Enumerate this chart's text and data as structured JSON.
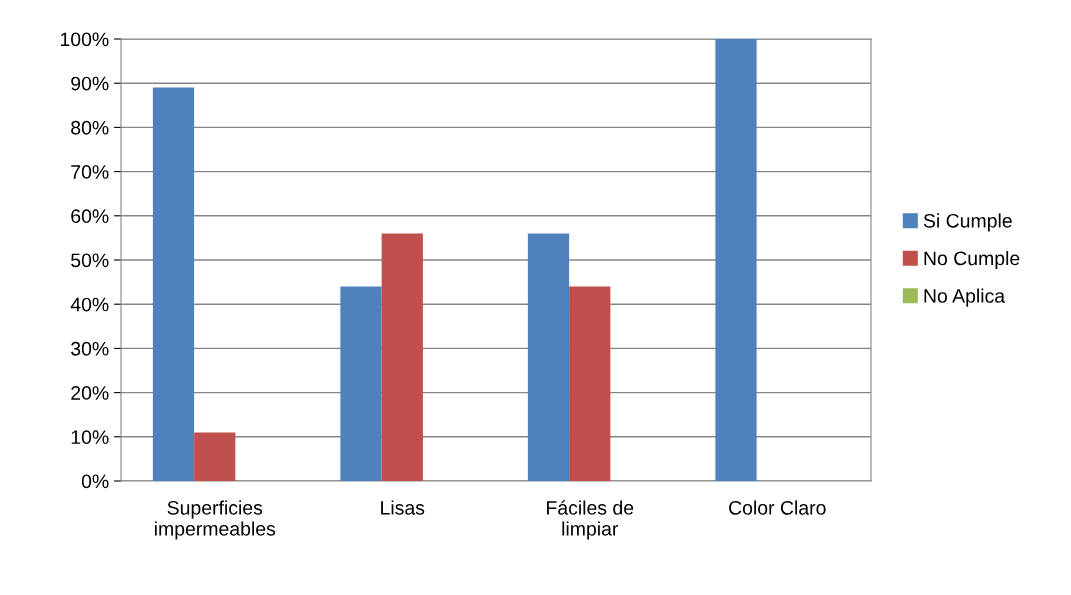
{
  "chart_data": {
    "type": "bar",
    "categories": [
      "Superficies\nimpermeables",
      "Lisas",
      "Fáciles de\nlimpiar",
      "Color Claro"
    ],
    "series": [
      {
        "name": "Si Cumple",
        "color": "#4f81bd",
        "values": [
          89,
          44,
          56,
          100
        ]
      },
      {
        "name": "No Cumple",
        "color": "#c0504d",
        "values": [
          11,
          56,
          44,
          0
        ]
      },
      {
        "name": "No Aplica",
        "color": "#9bbb59",
        "values": [
          0,
          0,
          0,
          0
        ]
      }
    ],
    "ylim": [
      0,
      100
    ],
    "yticks": [
      {
        "value": 0,
        "label": "0%"
      },
      {
        "value": 10,
        "label": "10%"
      },
      {
        "value": 20,
        "label": "20%"
      },
      {
        "value": 30,
        "label": "30%"
      },
      {
        "value": 40,
        "label": "40%"
      },
      {
        "value": 50,
        "label": "50%"
      },
      {
        "value": 60,
        "label": "60%"
      },
      {
        "value": 70,
        "label": "70%"
      },
      {
        "value": 80,
        "label": "80%"
      },
      {
        "value": 90,
        "label": "90%"
      },
      {
        "value": 100,
        "label": "100%"
      }
    ],
    "grid": "y",
    "legend": "right"
  }
}
